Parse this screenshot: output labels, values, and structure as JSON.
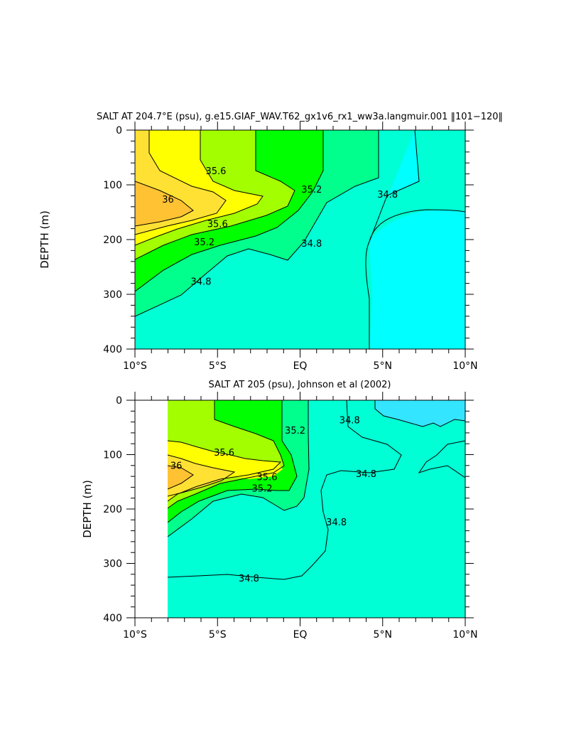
{
  "chart_data": [
    {
      "type": "contour",
      "title": "SALT AT 204.7°E (psu), g.e15.GIAF_WAV.T62_gx1v6_rx1_ww3a.langmuir.001 ‖101−120‖",
      "ylabel": "DEPTH (m)",
      "xlabel": "",
      "xlim": [
        -10,
        10
      ],
      "ylim": [
        400,
        0
      ],
      "x_ticks": [
        {
          "value": -10,
          "label": "10°S"
        },
        {
          "value": -5,
          "label": "5°S"
        },
        {
          "value": 0,
          "label": "EQ"
        },
        {
          "value": 5,
          "label": "5°N"
        },
        {
          "value": 10,
          "label": "10°N"
        }
      ],
      "y_ticks": [
        {
          "value": 0,
          "label": "0"
        },
        {
          "value": 100,
          "label": "100"
        },
        {
          "value": 200,
          "label": "200"
        },
        {
          "value": 300,
          "label": "300"
        },
        {
          "value": 400,
          "label": "400"
        }
      ],
      "contour_levels": [
        34.6,
        34.8,
        35.0,
        35.2,
        35.4,
        35.6,
        35.8,
        36.0
      ],
      "level_colors": [
        "#00ffff",
        "#00ffd5",
        "#00ff8c",
        "#00ff00",
        "#a3ff00",
        "#ffff00",
        "#ffe133",
        "#ffc233"
      ],
      "contour_labels": [
        {
          "text": "36",
          "x": -8.0,
          "y": 127
        },
        {
          "text": "35.6",
          "x": -5.1,
          "y": 75
        },
        {
          "text": "35.6",
          "x": -5.0,
          "y": 172
        },
        {
          "text": "35.2",
          "x": -5.8,
          "y": 205
        },
        {
          "text": "35.2",
          "x": 0.7,
          "y": 109
        },
        {
          "text": "34.8",
          "x": -6.0,
          "y": 277
        },
        {
          "text": "34.8",
          "x": 0.7,
          "y": 208
        },
        {
          "text": "34.8",
          "x": 5.3,
          "y": 118
        }
      ]
    },
    {
      "type": "contour",
      "title": "SALT AT 205 (psu), Johnson et al (2002)",
      "ylabel": "DEPTH (m)",
      "xlabel": "",
      "xlim": [
        -10,
        10
      ],
      "ylim": [
        400,
        0
      ],
      "data_xlim": [
        -8,
        10
      ],
      "x_ticks": [
        {
          "value": -10,
          "label": "10°S"
        },
        {
          "value": -5,
          "label": "5°S"
        },
        {
          "value": 0,
          "label": "EQ"
        },
        {
          "value": 5,
          "label": "5°N"
        },
        {
          "value": 10,
          "label": "10°N"
        }
      ],
      "y_ticks": [
        {
          "value": 0,
          "label": "0"
        },
        {
          "value": 100,
          "label": "100"
        },
        {
          "value": 200,
          "label": "200"
        },
        {
          "value": 300,
          "label": "300"
        },
        {
          "value": 400,
          "label": "400"
        }
      ],
      "contour_levels": [
        34.6,
        34.8,
        35.0,
        35.2,
        35.4,
        35.6,
        35.8,
        36.0
      ],
      "level_colors": [
        "#33e5ff",
        "#00ffd5",
        "#00ff8c",
        "#00ff00",
        "#a3ff00",
        "#ffff00",
        "#ffe133",
        "#ffc233"
      ],
      "contour_labels": [
        {
          "text": "35.6",
          "x": -4.6,
          "y": 97
        },
        {
          "text": "36",
          "x": -7.5,
          "y": 121
        },
        {
          "text": "35.6",
          "x": -2.0,
          "y": 142
        },
        {
          "text": "35.2",
          "x": -2.3,
          "y": 163
        },
        {
          "text": "35.2",
          "x": -0.3,
          "y": 56
        },
        {
          "text": "34.8",
          "x": 3.0,
          "y": 37
        },
        {
          "text": "34.8",
          "x": 4.0,
          "y": 136
        },
        {
          "text": "34.8",
          "x": 2.2,
          "y": 225
        },
        {
          "text": "34.8",
          "x": -3.1,
          "y": 328
        }
      ]
    }
  ]
}
